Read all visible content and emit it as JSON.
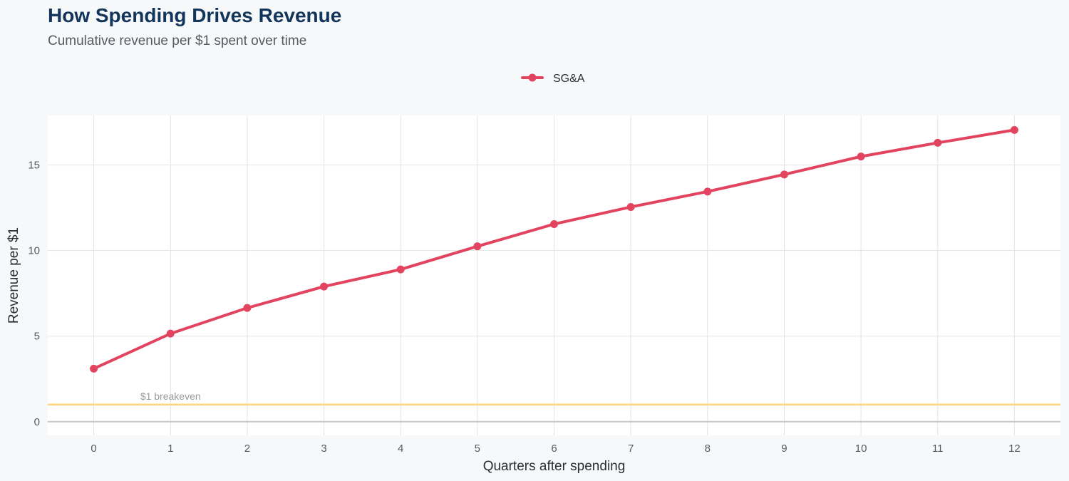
{
  "header": {
    "title": "How Spending Drives Revenue",
    "subtitle": "Cumulative revenue per $1 spent over time"
  },
  "colors": {
    "series": "#e2445f",
    "reference_line": "#ffd580",
    "grid": "#e3e3e3",
    "panel": "#ffffff",
    "title": "#12355b"
  },
  "chart_data": {
    "type": "line",
    "title": "How Spending Drives Revenue",
    "subtitle": "Cumulative revenue per $1 spent over time",
    "xlabel": "Quarters after spending",
    "ylabel": "Revenue per $1",
    "x": [
      0,
      1,
      2,
      3,
      4,
      5,
      6,
      7,
      8,
      9,
      10,
      11,
      12
    ],
    "series": [
      {
        "name": "SG&A",
        "values": [
          3.1,
          5.15,
          6.65,
          7.9,
          8.9,
          10.25,
          11.55,
          12.55,
          13.45,
          14.45,
          15.5,
          16.3,
          17.05
        ]
      }
    ],
    "xlim": [
      -0.6,
      12.6
    ],
    "ylim": [
      -0.8,
      17.9
    ],
    "yticks": [
      0,
      5,
      10,
      15
    ],
    "xticks": [
      0,
      1,
      2,
      3,
      4,
      5,
      6,
      7,
      8,
      9,
      10,
      11,
      12
    ],
    "reference_line": {
      "y": 1,
      "label": "$1 breakeven",
      "label_x": 1
    },
    "baseline_y": 0,
    "grid": true,
    "legend_position": "top-center"
  }
}
